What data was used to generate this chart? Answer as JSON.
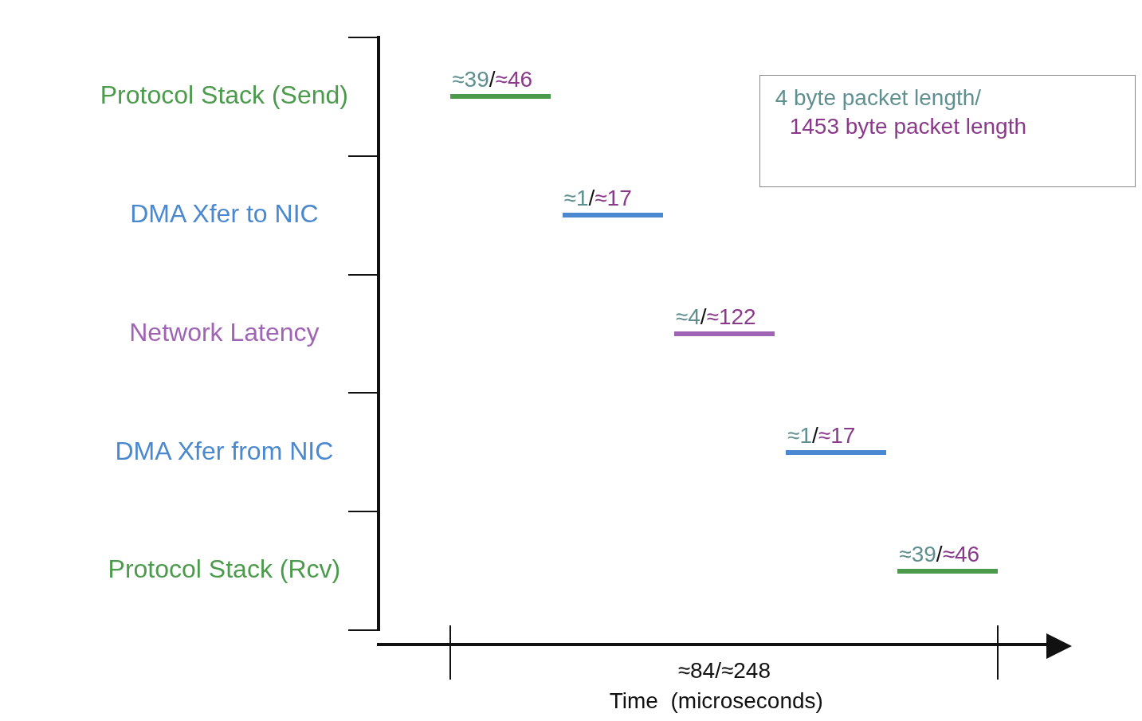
{
  "chart_data": {
    "type": "other",
    "xlabel": "Time  (microseconds)",
    "categories": [
      "Protocol Stack (Send)",
      "DMA Xfer to NIC",
      "Network Latency",
      "DMA Xfer from NIC",
      "Protocol Stack (Rcv)"
    ],
    "colors": [
      "#4c9a4c",
      "#4a88d0",
      "#a064b4",
      "#4a88d0",
      "#4c9a4c"
    ],
    "series": [
      {
        "color": "#5f8f8f",
        "values": [
          39,
          1,
          4,
          1,
          39
        ],
        "value_labels": [
          "≈39/",
          "≈1/",
          "≈4/",
          "≈1/",
          "≈39/"
        ]
      },
      {
        "color": "#8a3a8a",
        "values": [
          46,
          17,
          122,
          17,
          46
        ],
        "value_labels": [
          "≈46",
          "≈17",
          "≈122",
          "≈17",
          "≈46"
        ]
      }
    ],
    "annotations": [
      "4 byte packet length/",
      "1453 byte packet length",
      "≈84/≈248"
    ]
  }
}
